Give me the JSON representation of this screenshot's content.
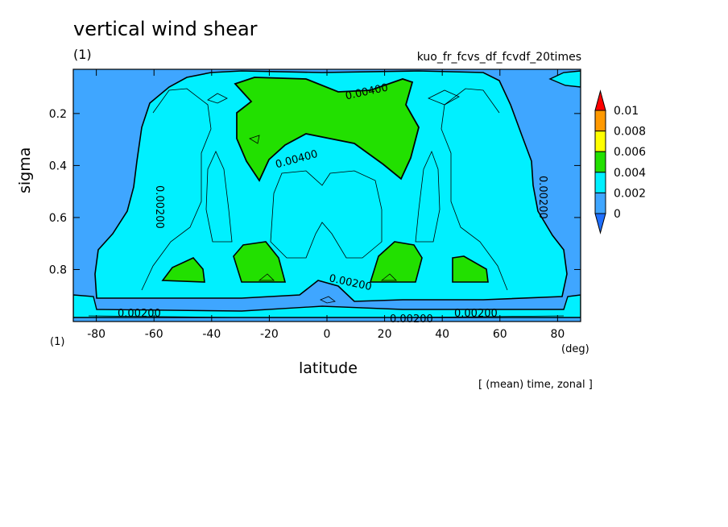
{
  "header": {
    "title": "vertical wind shear",
    "unit_label": "(1)",
    "run_name": "kuo_fr_fcvs_df_fcvdf_20times"
  },
  "footer": {
    "note": "[ (mean) time, zonal ]"
  },
  "chart_data": {
    "type": "heatmap",
    "title": "vertical wind shear",
    "xlabel": "latitude",
    "x_unit": "(deg)",
    "ylabel": "sigma",
    "y_unit": "(1)",
    "xlim": [
      -88,
      88
    ],
    "ylim": [
      1.0,
      0.03
    ],
    "x_ticks": [
      -80,
      -60,
      -40,
      -20,
      0,
      20,
      40,
      60,
      80
    ],
    "y_ticks": [
      0.2,
      0.4,
      0.6,
      0.8
    ],
    "colorbar": {
      "levels": [
        "0",
        "0.002",
        "0.004",
        "0.006",
        "0.008",
        "0.01"
      ],
      "colors": [
        "#1f6fff",
        "#3fa6ff",
        "#00f0ff",
        "#22e000",
        "#ffff00",
        "#ff9900",
        "#ff0000"
      ]
    },
    "contour_labels": [
      "0.00400",
      "0.00400",
      "0.00200",
      "0.00200",
      "0.00200",
      "0.00200",
      "0.00200",
      "0.00200"
    ]
  }
}
